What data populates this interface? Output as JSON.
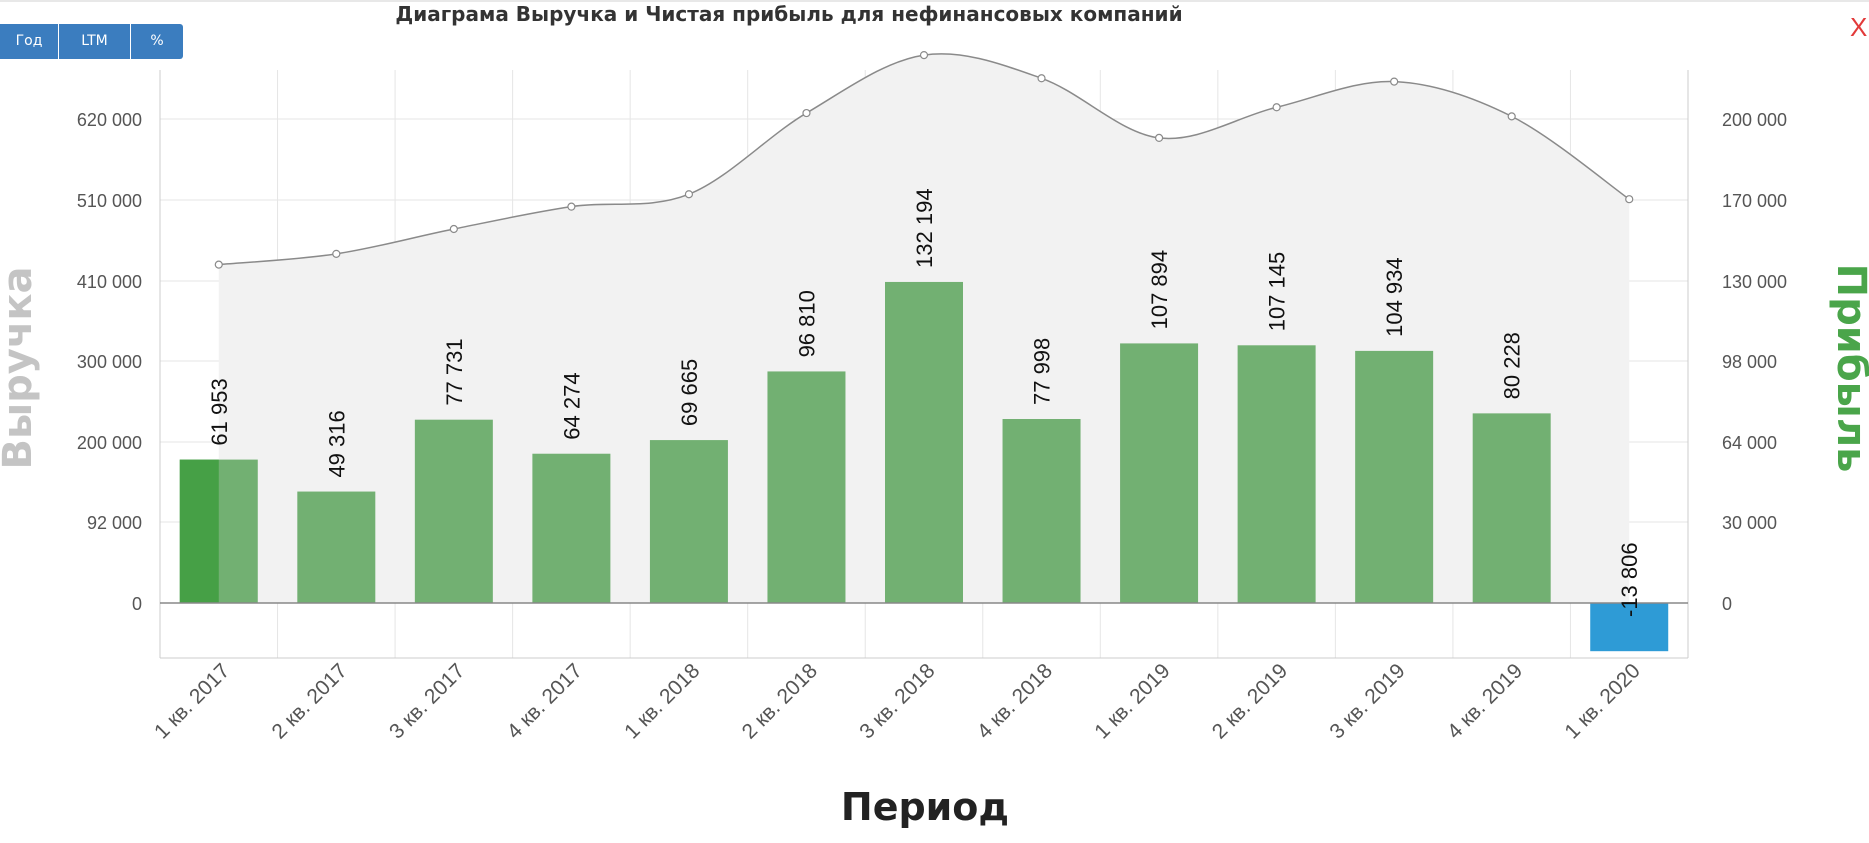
{
  "title": "Диаграма Выручка и Чистая прибыль для нефинансовых компаний",
  "buttons": [
    "Год",
    "LTM",
    "%"
  ],
  "close_label": "X",
  "colors": {
    "bar_positive": "#72b072",
    "bar_highlight": "#46a046",
    "bar_negative": "#2e9bd6",
    "area_fill": "#f2f2f2",
    "line": "#8a8a8a",
    "left_axis_title": "#c4c4c4",
    "right_axis_title": "#4aa54a"
  },
  "chart_data": {
    "type": "bar",
    "title": "Диаграма Выручка и Чистая прибыль для нефинансовых компаний",
    "xlabel": "Период",
    "ylabel_left": "Выручка",
    "ylabel_right": "Прибыль",
    "categories": [
      "1 кв. 2017",
      "2 кв. 2017",
      "3 кв. 2017",
      "4 кв. 2017",
      "1 кв. 2018",
      "2 кв. 2018",
      "3 кв. 2018",
      "4 кв. 2018",
      "1 кв. 2019",
      "2 кв. 2019",
      "3 кв. 2019",
      "4 кв. 2019",
      "1 кв. 2020"
    ],
    "left_ticks": [
      "0",
      "92 000",
      "200 000",
      "300 000",
      "410 000",
      "510 000",
      "620 000"
    ],
    "right_ticks": [
      "0",
      "30 000",
      "64 000",
      "98 000",
      "130 000",
      "170 000",
      "200 000"
    ],
    "left_ylim": [
      -50000,
      660000
    ],
    "right_ylim": [
      -16500,
      216000
    ],
    "series": [
      {
        "name": "Прибыль",
        "type": "bar",
        "axis": "right",
        "values": [
          61953,
          49316,
          77731,
          64274,
          69665,
          96810,
          132194,
          77998,
          107894,
          107145,
          104934,
          80228,
          -13806
        ],
        "labels": [
          "61 953",
          "49 316",
          "77 731",
          "64 274",
          "69 665",
          "96 810",
          "132 194",
          "77 998",
          "107 894",
          "107 145",
          "104 934",
          "80 228",
          "-13 806"
        ]
      },
      {
        "name": "Выручка",
        "type": "area",
        "axis": "left",
        "values": [
          425000,
          438000,
          468000,
          495000,
          510000,
          608000,
          678000,
          650000,
          578000,
          615000,
          646000,
          604000,
          504000
        ]
      }
    ],
    "grid": true,
    "legend": "none"
  }
}
